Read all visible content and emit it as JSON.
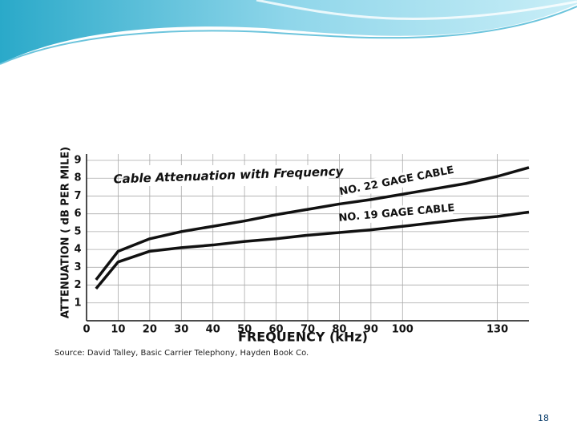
{
  "chart_data": {
    "type": "line",
    "title": "Cable Attenuation with Frequency",
    "x_label": "FREQUENCY (kHz)",
    "y_label": "ATTENUATION ( dB PER MILE)",
    "x": [
      3,
      10,
      20,
      30,
      40,
      50,
      60,
      70,
      80,
      90,
      100,
      110,
      120,
      130,
      140
    ],
    "series": [
      {
        "name": "NO. 22 GAGE CABLE",
        "color": "#111111",
        "values": [
          2.3,
          3.9,
          4.6,
          5.0,
          5.3,
          5.6,
          5.95,
          6.25,
          6.55,
          6.8,
          7.1,
          7.4,
          7.7,
          8.1,
          8.6
        ]
      },
      {
        "name": "NO. 19 GAGE CABLE",
        "color": "#111111",
        "values": [
          1.8,
          3.3,
          3.9,
          4.1,
          4.25,
          4.45,
          4.6,
          4.8,
          4.95,
          5.1,
          5.3,
          5.5,
          5.7,
          5.85,
          6.1
        ]
      }
    ],
    "xlim": [
      0,
      140
    ],
    "xticks": [
      0,
      10,
      20,
      30,
      40,
      50,
      60,
      70,
      80,
      90,
      100,
      130
    ],
    "ylim": [
      0,
      9
    ],
    "yticks": [
      1,
      2,
      3,
      4,
      5,
      6,
      7,
      8,
      9
    ],
    "grid": true
  },
  "slide": {
    "source": "Source: David Talley, Basic Carrier Telephony, Hayden Book Co.",
    "page_number": "18"
  }
}
